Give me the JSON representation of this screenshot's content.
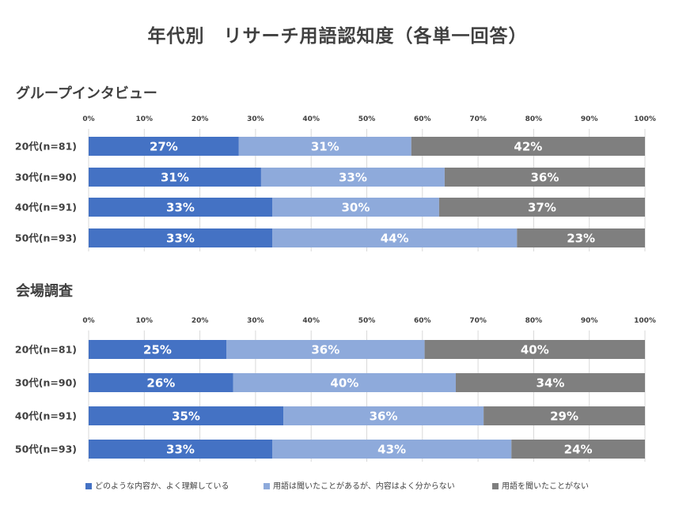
{
  "title": "年代別　リサーチ用語認知度（各単一回答）",
  "colors": {
    "s1": "#4472c4",
    "s2": "#8eaadb",
    "s3": "#7f7f7f"
  },
  "legend": [
    "どのような内容か、よく理解している",
    "用語は聞いたことがあるが、内容はよく分からない",
    "用語を聞いたことがない"
  ],
  "chart_data": [
    {
      "type": "bar",
      "orientation": "horizontal",
      "stacked": "percent",
      "title": "グループインタビュー",
      "xticks": [
        "0%",
        "10%",
        "20%",
        "30%",
        "40%",
        "50%",
        "60%",
        "70%",
        "80%",
        "90%",
        "100%"
      ],
      "xlim": [
        0,
        100
      ],
      "categories": [
        "20代(n=81)",
        "30代(n=90)",
        "40代(n=91)",
        "50代(n=93)"
      ],
      "series": [
        {
          "name": "どのような内容か、よく理解している",
          "values": [
            27,
            31,
            33,
            33
          ],
          "labels": [
            "27%",
            "31%",
            "33%",
            "33%"
          ]
        },
        {
          "name": "用語は聞いたことがあるが、内容はよく分からない",
          "values": [
            31,
            33,
            30,
            44
          ],
          "labels": [
            "31%",
            "33%",
            "30%",
            "44%"
          ]
        },
        {
          "name": "用語を聞いたことがない",
          "values": [
            42,
            36,
            37,
            23
          ],
          "labels": [
            "42%",
            "36%",
            "37%",
            "23%"
          ]
        }
      ]
    },
    {
      "type": "bar",
      "orientation": "horizontal",
      "stacked": "percent",
      "title": "会場調査",
      "xticks": [
        "0%",
        "10%",
        "20%",
        "30%",
        "40%",
        "50%",
        "60%",
        "70%",
        "80%",
        "90%",
        "100%"
      ],
      "xlim": [
        0,
        100
      ],
      "categories": [
        "20代(n=81)",
        "30代(n=90)",
        "40代(n=91)",
        "50代(n=93)"
      ],
      "series": [
        {
          "name": "どのような内容か、よく理解している",
          "values": [
            25,
            26,
            35,
            33
          ],
          "labels": [
            "25%",
            "26%",
            "35%",
            "33%"
          ]
        },
        {
          "name": "用語は聞いたことがあるが、内容はよく分からない",
          "values": [
            36,
            40,
            36,
            43
          ],
          "labels": [
            "36%",
            "40%",
            "36%",
            "43%"
          ]
        },
        {
          "name": "用語を聞いたことがない",
          "values": [
            40,
            34,
            29,
            24
          ],
          "labels": [
            "40%",
            "34%",
            "29%",
            "24%"
          ]
        }
      ]
    }
  ]
}
